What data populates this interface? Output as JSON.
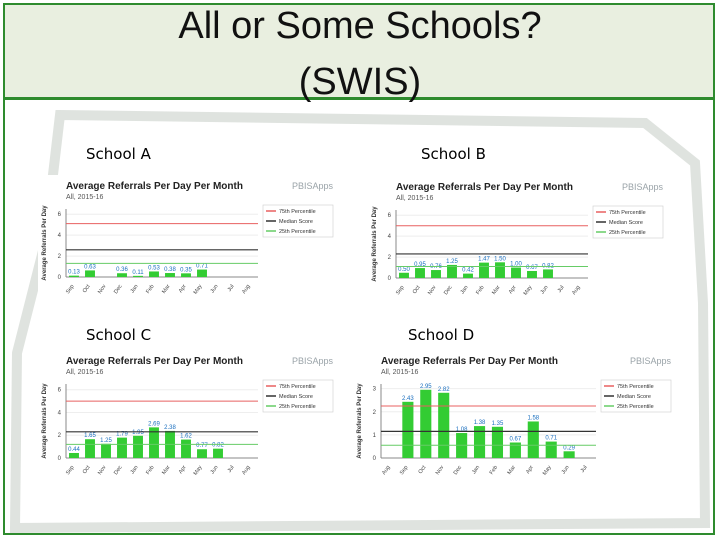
{
  "title_line1": "All or Some Schools?",
  "title_line2": "(SWIS)",
  "colors": {
    "border": "#2e8b2e",
    "bar": "#33cc33",
    "p75": "#e86060",
    "median": "#333333",
    "p25": "#66cc66"
  },
  "chart_data": [
    {
      "label": "School A",
      "type": "bar",
      "title": "Average Referrals Per Day Per Month",
      "subtitle": "All, 2015-16",
      "ylabel": "Average Referrals Per Day",
      "logo": "PBISApps",
      "categories": [
        "Sep",
        "Oct",
        "Nov",
        "Dec",
        "Jan",
        "Feb",
        "Mar",
        "Apr",
        "May",
        "Jun",
        "Jul",
        "Aug"
      ],
      "values": [
        0.13,
        0.63,
        null,
        0.36,
        0.11,
        0.53,
        0.38,
        0.35,
        0.71,
        null,
        null,
        null
      ],
      "value_labels": [
        "0.13",
        "0.63",
        "",
        "0.36",
        "0.11",
        "0.53",
        "0.38",
        "0.35",
        "0.71",
        "",
        "",
        ""
      ],
      "yticks": [
        "0",
        "2",
        "4",
        "6"
      ],
      "ylim": [
        0,
        6.5
      ],
      "reference_lines": {
        "p75": 5.1,
        "median": 2.6,
        "p25": 1.3
      },
      "legend": [
        "75th Percentile",
        "Median Score",
        "25th Percentile"
      ],
      "legend_position": "top-right"
    },
    {
      "label": "School B",
      "type": "bar",
      "title": "Average Referrals Per Day Per Month",
      "subtitle": "All, 2015-16",
      "ylabel": "Average Referrals Per Day",
      "logo": "PBISApps",
      "categories": [
        "Sep",
        "Oct",
        "Nov",
        "Dec",
        "Jan",
        "Feb",
        "Mar",
        "Apr",
        "May",
        "Jun",
        "Jul",
        "Aug"
      ],
      "values": [
        0.5,
        0.95,
        0.76,
        1.25,
        0.42,
        1.47,
        1.5,
        1.0,
        0.67,
        0.82,
        null,
        null
      ],
      "value_labels": [
        "0.50",
        "0.95",
        "0.76",
        "1.25",
        "0.42",
        "1.47",
        "1.50",
        "1.00",
        "0.67",
        "0.82",
        "",
        ""
      ],
      "yticks": [
        "0",
        "2",
        "4",
        "6"
      ],
      "ylim": [
        0,
        6.5
      ],
      "reference_lines": {
        "p75": 5.0,
        "median": 2.3,
        "p25": 1.1
      },
      "legend": [
        "75th Percentile",
        "Median Score",
        "25th Percentile"
      ],
      "legend_position": "top-right"
    },
    {
      "label": "School C",
      "type": "bar",
      "title": "Average Referrals Per Day Per Month",
      "subtitle": "All, 2015-16",
      "ylabel": "Average Referrals Per Day",
      "logo": "PBISApps",
      "categories": [
        "Sep",
        "Oct",
        "Nov",
        "Dec",
        "Jan",
        "Feb",
        "Mar",
        "Apr",
        "May",
        "Jun",
        "Jul",
        "Aug"
      ],
      "values": [
        0.44,
        1.65,
        1.25,
        1.79,
        1.95,
        2.69,
        2.38,
        1.62,
        0.77,
        0.82,
        null,
        null
      ],
      "value_labels": [
        "0.44",
        "1.65",
        "1.25",
        "1.79",
        "1.95",
        "2.69",
        "2.38",
        "1.62",
        "0.77",
        "0.82",
        "",
        ""
      ],
      "yticks": [
        "0",
        "2",
        "4",
        "6"
      ],
      "ylim": [
        0,
        6.5
      ],
      "reference_lines": {
        "p75": 5.0,
        "median": 2.3,
        "p25": 1.2
      },
      "legend": [
        "75th Percentile",
        "Median Score",
        "25th Percentile"
      ],
      "legend_position": "top-right"
    },
    {
      "label": "School D",
      "type": "bar",
      "title": "Average Referrals Per Day Per Month",
      "subtitle": "All, 2015-16",
      "ylabel": "Average Referrals Per Day",
      "logo": "PBISApps",
      "categories": [
        "Aug",
        "Sep",
        "Oct",
        "Nov",
        "Dec",
        "Jan",
        "Feb",
        "Mar",
        "Apr",
        "May",
        "Jun",
        "Jul"
      ],
      "values": [
        null,
        2.43,
        2.95,
        2.82,
        1.08,
        1.38,
        1.35,
        0.67,
        1.58,
        0.71,
        0.29,
        null
      ],
      "value_labels": [
        "",
        "2.43",
        "2.95",
        "2.82",
        "1.08",
        "1.38",
        "1.35",
        "0.67",
        "1.58",
        "0.71",
        "0.29",
        ""
      ],
      "yticks": [
        "0",
        "1",
        "2",
        "3"
      ],
      "ylim": [
        0,
        3.2
      ],
      "reference_lines": {
        "p75": 2.25,
        "median": 1.15,
        "p25": 0.55
      },
      "legend": [
        "75th Percentile",
        "Median Score",
        "25th Percentile"
      ],
      "legend_position": "top-right"
    }
  ]
}
